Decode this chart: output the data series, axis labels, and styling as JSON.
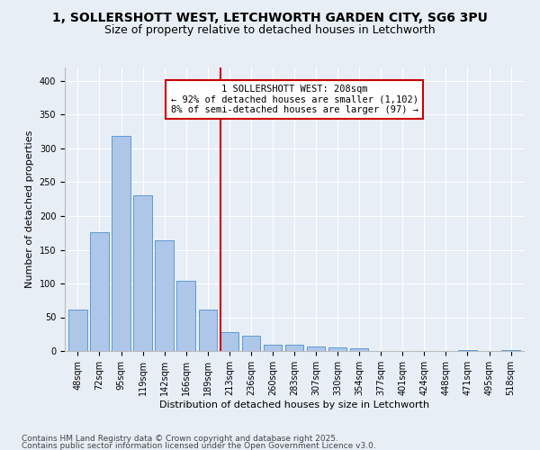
{
  "title_line1": "1, SOLLERSHOTT WEST, LETCHWORTH GARDEN CITY, SG6 3PU",
  "title_line2": "Size of property relative to detached houses in Letchworth",
  "xlabel": "Distribution of detached houses by size in Letchworth",
  "ylabel": "Number of detached properties",
  "categories": [
    "48sqm",
    "72sqm",
    "95sqm",
    "119sqm",
    "142sqm",
    "166sqm",
    "189sqm",
    "213sqm",
    "236sqm",
    "260sqm",
    "283sqm",
    "307sqm",
    "330sqm",
    "354sqm",
    "377sqm",
    "401sqm",
    "424sqm",
    "448sqm",
    "471sqm",
    "495sqm",
    "518sqm"
  ],
  "values": [
    62,
    176,
    318,
    231,
    164,
    104,
    62,
    28,
    23,
    10,
    10,
    7,
    5,
    4,
    0,
    0,
    0,
    0,
    1,
    0,
    1
  ],
  "bar_color": "#aec6e8",
  "bar_edge_color": "#5b9bd5",
  "annotation_text": "1 SOLLERSHOTT WEST: 208sqm\n← 92% of detached houses are smaller (1,102)\n8% of semi-detached houses are larger (97) →",
  "vline_x_index": 7,
  "vline_color": "#cc0000",
  "annotation_box_edge_color": "#cc0000",
  "background_color": "#e8eef6",
  "plot_bg_color": "#e8eef6",
  "footer_line1": "Contains HM Land Registry data © Crown copyright and database right 2025.",
  "footer_line2": "Contains public sector information licensed under the Open Government Licence v3.0.",
  "ylim": [
    0,
    420
  ],
  "yticks": [
    0,
    50,
    100,
    150,
    200,
    250,
    300,
    350,
    400
  ],
  "title_fontsize": 10,
  "subtitle_fontsize": 9,
  "axis_label_fontsize": 8,
  "tick_fontsize": 7,
  "annotation_fontsize": 7.5,
  "footer_fontsize": 6.5
}
